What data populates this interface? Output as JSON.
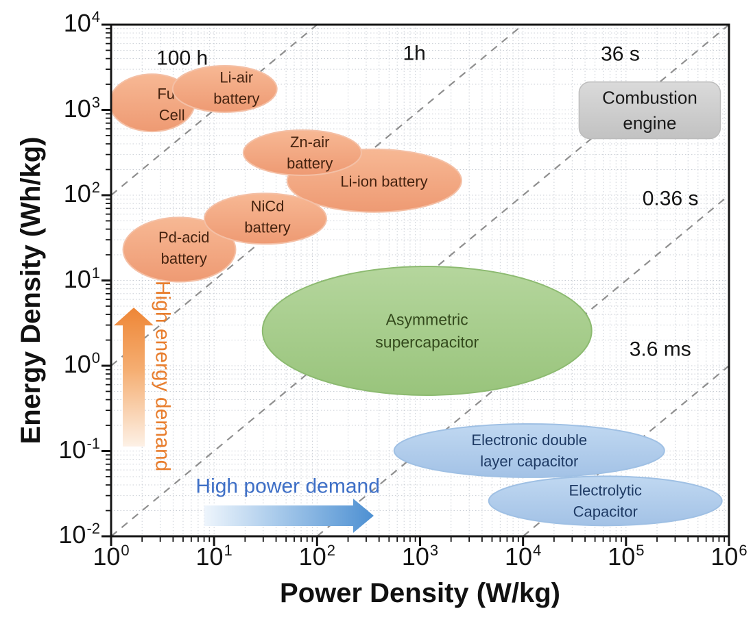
{
  "chart_data": {
    "type": "scatter",
    "title": "",
    "xlabel": "Power Density (W/kg)",
    "ylabel": "Energy Density (Wh/kg)",
    "x_scale": "log",
    "y_scale": "log",
    "xlim": [
      1,
      1000000
    ],
    "ylim": [
      0.01,
      10000
    ],
    "x_log_min": 0,
    "x_log_max": 6,
    "y_log_min": -2,
    "y_log_max": 4,
    "x_tick_exponents": [
      0,
      1,
      2,
      3,
      4,
      5,
      6
    ],
    "y_tick_exponents": [
      4,
      3,
      2,
      1,
      0,
      -1,
      -2
    ],
    "grid": "log minor dotted, on",
    "legend": "none",
    "regions": [
      {
        "id": "li-ion-battery",
        "label": [
          "Li-ion battery"
        ],
        "color": "orange",
        "shape": "ellipse",
        "center": [
          360,
          148
        ],
        "rx_dec": 0.846,
        "ry_dec": 0.369,
        "label_at": [
          447,
          145
        ]
      },
      {
        "id": "zn-air-battery",
        "label": [
          "Zn-air",
          "battery"
        ],
        "color": "orange",
        "shape": "ellipse",
        "center": [
          72,
          315
        ],
        "rx_dec": 0.573,
        "ry_dec": 0.265,
        "label_at": [
          85,
          315
        ]
      },
      {
        "id": "fuel-cell",
        "label": [
          "Fuel",
          "Cell"
        ],
        "color": "orange",
        "shape": "ellipse",
        "center": [
          2.5,
          1210
        ],
        "rx_dec": 0.413,
        "ry_dec": 0.337,
        "label_at": [
          3.9,
          1160
        ]
      },
      {
        "id": "li-air-battery",
        "label": [
          "Li-air",
          "battery"
        ],
        "color": "orange",
        "shape": "ellipse",
        "center": [
          12.7,
          1760
        ],
        "rx_dec": 0.506,
        "ry_dec": 0.273,
        "label_at": [
          16.5,
          1800
        ]
      },
      {
        "id": "pd-acid-battery",
        "label": [
          "Pd-acid",
          "battery"
        ],
        "color": "orange",
        "shape": "ellipse",
        "center": [
          4.6,
          23
        ],
        "rx_dec": 0.546,
        "ry_dec": 0.378,
        "label_at": [
          5.1,
          24
        ]
      },
      {
        "id": "nicd-battery",
        "label": [
          "NiCd",
          "battery"
        ],
        "color": "orange",
        "shape": "ellipse",
        "center": [
          31.5,
          53
        ],
        "rx_dec": 0.593,
        "ry_dec": 0.297,
        "label_at": [
          33,
          56
        ]
      },
      {
        "id": "asymmetric-supercapacitor",
        "label": [
          "Asymmetric",
          "supercapacitor"
        ],
        "color": "green",
        "shape": "ellipse",
        "center": [
          1170,
          2.57
        ],
        "rx_dec": 1.598,
        "ry_dec": 0.755,
        "font": 23
      },
      {
        "id": "electronic-double-layer-capacitor",
        "label": [
          "Electronic double",
          "layer capacitor"
        ],
        "color": "blue",
        "shape": "ellipse",
        "center": [
          11500,
          0.101
        ],
        "rx_dec": 1.312,
        "ry_dec": 0.313
      },
      {
        "id": "electrolytic-capacitor",
        "label": [
          "Electrolytic",
          "Capacitor"
        ],
        "color": "blue",
        "shape": "ellipse",
        "center": [
          63000,
          0.026
        ],
        "rx_dec": 1.132,
        "ry_dec": 0.289
      },
      {
        "id": "combustion-engine",
        "label": [
          "Combustion",
          "engine"
        ],
        "color": "gray",
        "shape": "round-rect",
        "center": [
          170000,
          990
        ],
        "rx_dec": 0.686,
        "ry_dec": 0.333,
        "font": 26
      }
    ],
    "time_lines": [
      {
        "label": "100 h",
        "log10_hours": 2,
        "label_at": [
          4.9,
          4050
        ]
      },
      {
        "label": "1h",
        "log10_hours": 0,
        "label_at": [
          880,
          4600
        ]
      },
      {
        "label": "36 s",
        "log10_hours": -2,
        "label_at": [
          88000,
          4500
        ]
      },
      {
        "label": "0.36 s",
        "log10_hours": -4,
        "label_at": [
          270000,
          91
        ]
      },
      {
        "label": "3.6 ms",
        "log10_hours": -6,
        "label_at": [
          215000,
          1.56
        ]
      }
    ],
    "arrows": {
      "up": {
        "label": "High energy demand",
        "at_power": 1.66,
        "from_energy": 0.113,
        "to_energy": 4.8,
        "label_at": [
          3.16,
          0.757
        ]
      },
      "right": {
        "label": "High power demand",
        "at_energy": 0.0174,
        "from_power": 8,
        "to_power": 355,
        "label_at": [
          52,
          0.0385
        ]
      }
    }
  },
  "palette": {
    "orange": {
      "top": "#f7b894",
      "bottom": "#ee9a73",
      "stroke": "#f4c0a6",
      "text": "#44220f"
    },
    "green": {
      "top": "#b5d69d",
      "bottom": "#99c47c",
      "stroke": "#8cba70",
      "text": "#33491c"
    },
    "blue": {
      "top": "#c0d8f1",
      "bottom": "#a3c2e6",
      "stroke": "#9fc0e4",
      "text": "#1e3a64"
    },
    "gray": {
      "top": "#dadada",
      "bottom": "#c2c2c2",
      "stroke": "#bcbcbc",
      "text": "#1a1a1a"
    },
    "grid": "#c9ced5",
    "time_line": "#8f8f8f",
    "time_text": "#141414",
    "axis": "#141414",
    "up_arrow": {
      "from": "#fdf1e6",
      "mid": "#f5ae72",
      "to": "#ee8636",
      "label": "#e87e2e"
    },
    "right_arrow": {
      "from": "#eef5fc",
      "mid": "#a5c8ea",
      "to": "#4d90d2",
      "label": "#3e6fc6"
    }
  }
}
